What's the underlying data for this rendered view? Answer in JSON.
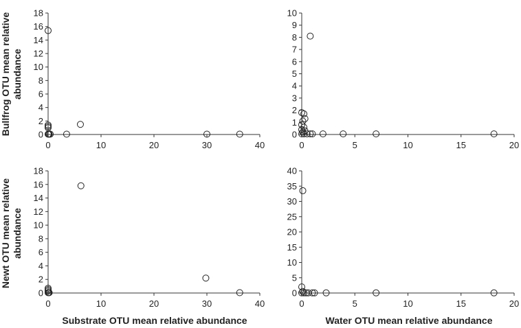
{
  "chart_data": [
    {
      "panel": "top-left",
      "type": "scatter",
      "title": "",
      "xlabel": "",
      "ylabel": "Bullfrog OTU mean relative abundance",
      "xlim": [
        0,
        40
      ],
      "ylim": [
        0,
        18
      ],
      "xticks": [
        0,
        10,
        20,
        30,
        40
      ],
      "yticks": [
        0,
        2,
        4,
        6,
        8,
        10,
        12,
        14,
        16,
        18
      ],
      "points": [
        [
          0,
          15.4
        ],
        [
          0,
          1.4
        ],
        [
          0,
          1.2
        ],
        [
          0,
          1.0
        ],
        [
          0,
          0.05
        ],
        [
          0.1,
          0.05
        ],
        [
          0.2,
          0.05
        ],
        [
          0.4,
          0.05
        ],
        [
          3.5,
          0.05
        ],
        [
          6.1,
          1.5
        ],
        [
          30,
          0.05
        ],
        [
          36.2,
          0.05
        ]
      ]
    },
    {
      "panel": "top-right",
      "type": "scatter",
      "title": "",
      "xlabel": "",
      "ylabel": "",
      "xlim": [
        0,
        20
      ],
      "ylim": [
        0,
        10
      ],
      "xticks": [
        0,
        5,
        10,
        15,
        20
      ],
      "yticks": [
        0,
        1,
        2,
        3,
        4,
        5,
        6,
        7,
        8,
        9,
        10
      ],
      "points": [
        [
          0.8,
          8.1
        ],
        [
          0,
          1.8
        ],
        [
          0.2,
          1.7
        ],
        [
          0.3,
          1.3
        ],
        [
          0.1,
          1.1
        ],
        [
          0,
          0.8
        ],
        [
          0.2,
          0.6
        ],
        [
          0,
          0.4
        ],
        [
          0.3,
          0.3
        ],
        [
          0.1,
          0.2
        ],
        [
          0,
          0.05
        ],
        [
          0.2,
          0.05
        ],
        [
          0.5,
          0.05
        ],
        [
          0.8,
          0.05
        ],
        [
          1.0,
          0.05
        ],
        [
          2.0,
          0.05
        ],
        [
          3.9,
          0.05
        ],
        [
          7.0,
          0.05
        ],
        [
          18.1,
          0.05
        ]
      ]
    },
    {
      "panel": "bottom-left",
      "type": "scatter",
      "title": "",
      "xlabel": "Substrate OTU mean relative abundance",
      "ylabel": "Newt OTU mean relative abundance",
      "xlim": [
        0,
        40
      ],
      "ylim": [
        0,
        18
      ],
      "xticks": [
        0,
        10,
        20,
        30,
        40
      ],
      "yticks": [
        0,
        2,
        4,
        6,
        8,
        10,
        12,
        14,
        16,
        18
      ],
      "points": [
        [
          6.2,
          15.8
        ],
        [
          29.8,
          2.2
        ],
        [
          36.2,
          0.05
        ],
        [
          0,
          0.7
        ],
        [
          0,
          0.5
        ],
        [
          0,
          0.3
        ],
        [
          0,
          0.05
        ],
        [
          0.1,
          0.05
        ],
        [
          0.2,
          0.05
        ]
      ]
    },
    {
      "panel": "bottom-right",
      "type": "scatter",
      "title": "",
      "xlabel": "Water OTU mean relative abundance",
      "ylabel": "",
      "xlim": [
        0,
        20
      ],
      "ylim": [
        0,
        40
      ],
      "xticks": [
        0,
        5,
        10,
        15,
        20
      ],
      "yticks": [
        0,
        5,
        10,
        15,
        20,
        25,
        30,
        35,
        40
      ],
      "points": [
        [
          0.1,
          33.5
        ],
        [
          0,
          2.0
        ],
        [
          0.1,
          0.5
        ],
        [
          0,
          0.05
        ],
        [
          0.2,
          0.05
        ],
        [
          0.4,
          0.05
        ],
        [
          0.6,
          0.05
        ],
        [
          1.0,
          0.05
        ],
        [
          1.2,
          0.05
        ],
        [
          2.3,
          0.05
        ],
        [
          7.0,
          0.05
        ],
        [
          18.1,
          0.05
        ]
      ]
    }
  ],
  "ylabels": {
    "top": [
      "Bullfrog OTU mean relative",
      "abundance"
    ],
    "bottom": [
      "Newt OTU mean relative",
      "abundance"
    ]
  }
}
